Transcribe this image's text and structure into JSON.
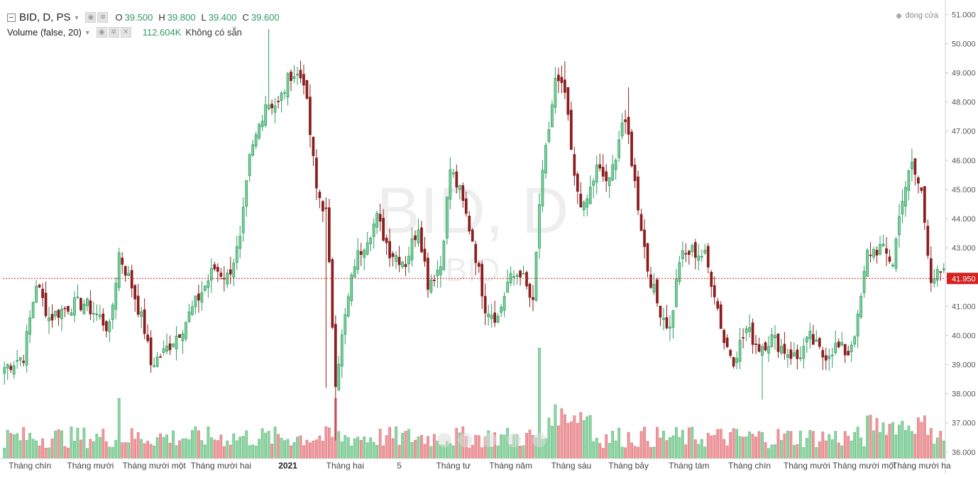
{
  "legend": {
    "symbol": "BID, D, PS",
    "o_label": "O",
    "o_value": "39.500",
    "h_label": "H",
    "h_value": "39.800",
    "l_label": "L",
    "l_value": "39.400",
    "c_label": "C",
    "c_value": "39.600",
    "volume_title": "Volume (false, 20)",
    "volume_value": "112.604K",
    "volume_na": "Không có sẵn",
    "close_legend": "đóng cửa"
  },
  "watermark": {
    "main": "BID, D",
    "sub": "BID"
  },
  "colors": {
    "up": "#2e9b63",
    "down": "#8b1e1e",
    "up_fill": "#7ed39a",
    "down_fill": "#f28c8c",
    "vol_up": "#8ed6a2",
    "vol_down": "#f29a9e",
    "price_line": "#d22222"
  },
  "chart_data": {
    "type": "candlestick",
    "ylim": [
      35.8,
      51.3
    ],
    "y_ticks": [
      "51.000",
      "50.000",
      "49.000",
      "48.000",
      "47.000",
      "46.000",
      "45.000",
      "44.000",
      "43.000",
      "42.000",
      "41.000",
      "40.000",
      "39.000",
      "38.000",
      "37.000",
      "36.000"
    ],
    "last_price": "41.950",
    "x_labels": [
      "Tháng chín",
      "Tháng mười",
      "Tháng mười một",
      "Tháng mười hai",
      "2021",
      "Tháng hai",
      "5",
      "Tháng tư",
      "Tháng năm",
      "Tháng sáu",
      "Tháng bảy",
      "Tháng tám",
      "Tháng chín",
      "Tháng mười",
      "Tháng mười một",
      "Tháng mười ha"
    ],
    "x_label_index": [
      8,
      27,
      47,
      68,
      89,
      107,
      124,
      141,
      159,
      178,
      196,
      215,
      234,
      252,
      270,
      288
    ],
    "anchors": [
      [
        0,
        38.9
      ],
      [
        6,
        39.3
      ],
      [
        10,
        41.8
      ],
      [
        14,
        40.6
      ],
      [
        20,
        41.0
      ],
      [
        25,
        41.1
      ],
      [
        30,
        40.6
      ],
      [
        33,
        40.2
      ],
      [
        36,
        42.8
      ],
      [
        40,
        41.7
      ],
      [
        44,
        40.2
      ],
      [
        46,
        39.0
      ],
      [
        50,
        39.4
      ],
      [
        56,
        40.3
      ],
      [
        62,
        41.5
      ],
      [
        66,
        42.3
      ],
      [
        70,
        42.0
      ],
      [
        74,
        43.2
      ],
      [
        77,
        46.0
      ],
      [
        82,
        48.0
      ],
      [
        86,
        47.9
      ],
      [
        90,
        49.0
      ],
      [
        94,
        48.8
      ],
      [
        98,
        45.0
      ],
      [
        101,
        44.2
      ],
      [
        104,
        38.5
      ],
      [
        107,
        40.6
      ],
      [
        110,
        42.5
      ],
      [
        114,
        43.4
      ],
      [
        117,
        44.0
      ],
      [
        121,
        42.9
      ],
      [
        126,
        42.5
      ],
      [
        130,
        43.8
      ],
      [
        133,
        41.8
      ],
      [
        137,
        42.4
      ],
      [
        140,
        45.7
      ],
      [
        143,
        44.9
      ],
      [
        147,
        43.3
      ],
      [
        151,
        41.0
      ],
      [
        155,
        40.6
      ],
      [
        158,
        41.8
      ],
      [
        162,
        42.2
      ],
      [
        166,
        41.0
      ],
      [
        168,
        44.5
      ],
      [
        170,
        46.3
      ],
      [
        173,
        48.7
      ],
      [
        176,
        48.3
      ],
      [
        179,
        45.3
      ],
      [
        182,
        44.3
      ],
      [
        186,
        45.7
      ],
      [
        190,
        45.2
      ],
      [
        194,
        47.3
      ],
      [
        196,
        46.8
      ],
      [
        198,
        45.2
      ],
      [
        202,
        42.3
      ],
      [
        205,
        41.1
      ],
      [
        209,
        40.2
      ],
      [
        212,
        42.6
      ],
      [
        216,
        42.9
      ],
      [
        220,
        42.7
      ],
      [
        223,
        41.5
      ],
      [
        226,
        39.8
      ],
      [
        229,
        39.2
      ],
      [
        233,
        40.2
      ],
      [
        237,
        39.6
      ],
      [
        241,
        39.9
      ],
      [
        245,
        39.5
      ],
      [
        249,
        39.2
      ],
      [
        253,
        39.9
      ],
      [
        257,
        39.3
      ],
      [
        261,
        39.6
      ],
      [
        265,
        39.4
      ],
      [
        268,
        40.5
      ],
      [
        271,
        42.8
      ],
      [
        275,
        43.0
      ],
      [
        279,
        42.5
      ],
      [
        282,
        44.8
      ],
      [
        285,
        45.8
      ],
      [
        288,
        44.9
      ],
      [
        291,
        42.0
      ]
    ],
    "price_rows": [
      [
        "date_index",
        "open",
        "high",
        "low",
        "close"
      ]
    ],
    "volume_ylim": [
      0,
      2.15
    ],
    "volume_note": "volume in millions"
  }
}
